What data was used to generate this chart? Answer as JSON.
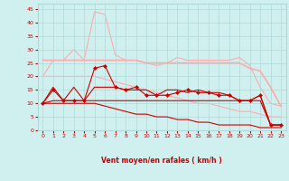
{
  "x": [
    0,
    1,
    2,
    3,
    4,
    5,
    6,
    7,
    8,
    9,
    10,
    11,
    12,
    13,
    14,
    15,
    16,
    17,
    18,
    19,
    20,
    21,
    22,
    23
  ],
  "series": [
    {
      "name": "rafales_light1",
      "color": "#ffaaaa",
      "linewidth": 0.8,
      "marker": null,
      "linestyle": "-",
      "zorder": 1,
      "y": [
        20,
        26,
        26,
        30,
        26,
        44,
        43,
        28,
        26,
        26,
        25,
        24,
        25,
        27,
        26,
        26,
        26,
        26,
        26,
        27,
        24,
        16,
        10,
        9
      ]
    },
    {
      "name": "moyen_light",
      "color": "#ffaaaa",
      "linewidth": 1.2,
      "marker": null,
      "linestyle": "-",
      "zorder": 2,
      "y": [
        26,
        26,
        26,
        26,
        26,
        26,
        26,
        26,
        26,
        26,
        25,
        25,
        25,
        25,
        25,
        25,
        25,
        25,
        25,
        25,
        23,
        22,
        16,
        9
      ]
    },
    {
      "name": "line_diag",
      "color": "#ffaaaa",
      "linewidth": 0.8,
      "marker": null,
      "linestyle": "-",
      "zorder": 1,
      "y": [
        20,
        20,
        20,
        20,
        20,
        20,
        19,
        18,
        17,
        16,
        15,
        14,
        13,
        12,
        11,
        10,
        10,
        9,
        8,
        7,
        7,
        6,
        5,
        5
      ]
    },
    {
      "name": "moyen_dark_markers",
      "color": "#cc0000",
      "linewidth": 0.8,
      "marker": "D",
      "markersize": 2.0,
      "linestyle": "-",
      "zorder": 4,
      "y": [
        10,
        15,
        11,
        11,
        11,
        23,
        24,
        16,
        15,
        16,
        13,
        13,
        13,
        14,
        15,
        14,
        14,
        13,
        13,
        11,
        11,
        13,
        2,
        2
      ]
    },
    {
      "name": "moyen_dark2",
      "color": "#cc0000",
      "linewidth": 0.8,
      "marker": null,
      "linestyle": "-",
      "zorder": 3,
      "y": [
        10,
        11,
        11,
        11,
        11,
        11,
        11,
        11,
        11,
        11,
        11,
        11,
        11,
        11,
        11,
        11,
        11,
        11,
        11,
        11,
        11,
        11,
        2,
        2
      ]
    },
    {
      "name": "line_diag_dark",
      "color": "#cc0000",
      "linewidth": 0.8,
      "marker": null,
      "linestyle": "-",
      "zorder": 3,
      "y": [
        10,
        10,
        10,
        10,
        10,
        10,
        9,
        8,
        7,
        6,
        6,
        5,
        5,
        4,
        4,
        3,
        3,
        2,
        2,
        2,
        2,
        1,
        1,
        1
      ]
    },
    {
      "name": "rafales_dark",
      "color": "#cc0000",
      "linewidth": 0.8,
      "marker": null,
      "linestyle": "-",
      "zorder": 3,
      "y": [
        10,
        16,
        11,
        16,
        11,
        16,
        16,
        16,
        15,
        15,
        15,
        13,
        15,
        15,
        14,
        15,
        14,
        14,
        13,
        11,
        11,
        13,
        2,
        2
      ]
    }
  ],
  "xlabel": "Vent moyen/en rafales ( km/h )",
  "xlim": [
    -0.5,
    23.5
  ],
  "ylim": [
    0,
    47
  ],
  "yticks": [
    0,
    5,
    10,
    15,
    20,
    25,
    30,
    35,
    40,
    45
  ],
  "xticks": [
    0,
    1,
    2,
    3,
    4,
    5,
    6,
    7,
    8,
    9,
    10,
    11,
    12,
    13,
    14,
    15,
    16,
    17,
    18,
    19,
    20,
    21,
    22,
    23
  ],
  "bg_color": "#d0f0f0",
  "grid_color": "#b0d8d8",
  "xlabel_color": "#cc0000",
  "tick_color": "#cc0000",
  "arrow_color": "#dd0000",
  "arrow_angles": [
    45,
    45,
    45,
    45,
    45,
    45,
    45,
    10,
    0,
    0,
    0,
    0,
    0,
    0,
    0,
    0,
    315,
    315,
    315,
    315,
    315,
    315,
    200,
    10
  ]
}
